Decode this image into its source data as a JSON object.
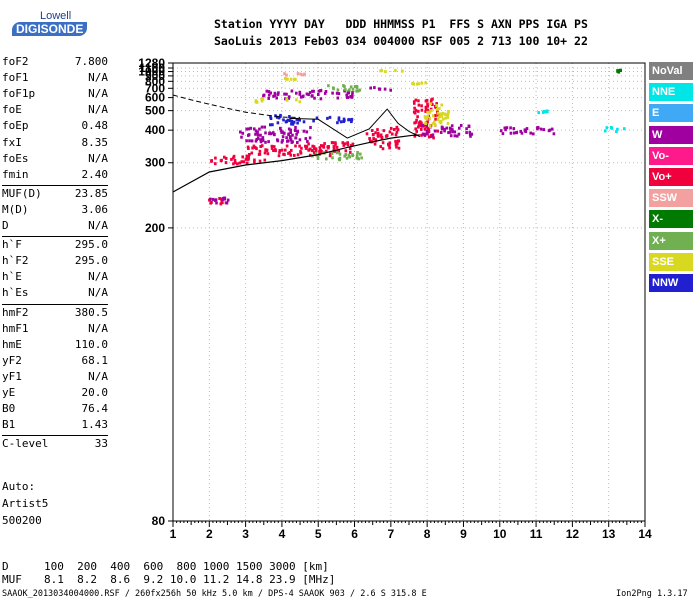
{
  "logo": {
    "top": "Lowell",
    "main": "DIGISONDE"
  },
  "header": {
    "row1": "Station YYYY DAY   DDD HHMMSS P1  FFS S AXN PPS IGA PS",
    "row2": "SaoLuis 2013 Feb03 034 004000 RSF 005 2 713 100 10+ 22"
  },
  "params_group1": [
    {
      "label": "foF2",
      "value": "7.800"
    },
    {
      "label": "foF1",
      "value": "N/A"
    },
    {
      "label": "foF1p",
      "value": "N/A"
    },
    {
      "label": "foE",
      "value": "N/A"
    },
    {
      "label": "foEp",
      "value": "0.48"
    },
    {
      "label": "fxI",
      "value": "8.35"
    },
    {
      "label": "foEs",
      "value": "N/A"
    },
    {
      "label": "fmin",
      "value": "2.40"
    }
  ],
  "params_group2": [
    {
      "label": "MUF(D)",
      "value": "23.85"
    },
    {
      "label": "M(D)",
      "value": "3.06"
    },
    {
      "label": "D",
      "value": "N/A"
    }
  ],
  "params_group3": [
    {
      "label": "h`F",
      "value": "295.0"
    },
    {
      "label": "h`F2",
      "value": "295.0"
    },
    {
      "label": "h`E",
      "value": "N/A"
    },
    {
      "label": "h`Es",
      "value": "N/A"
    }
  ],
  "params_group4": [
    {
      "label": "hmF2",
      "value": "380.5"
    },
    {
      "label": "hmF1",
      "value": "N/A"
    },
    {
      "label": "hmE",
      "value": "110.0"
    },
    {
      "label": "yF2",
      "value": "68.1"
    },
    {
      "label": "yF1",
      "value": "N/A"
    },
    {
      "label": "yE",
      "value": "20.0"
    },
    {
      "label": "B0",
      "value": "76.4"
    },
    {
      "label": "B1",
      "value": "1.43"
    }
  ],
  "params_group5": [
    {
      "label": "C-level",
      "value": "33"
    }
  ],
  "autoscale": {
    "line1": "Auto:",
    "line2": "Artist5",
    "line3": "500200"
  },
  "legend": [
    {
      "label": "NoVal",
      "color": "#808080"
    },
    {
      "label": "NNE",
      "color": "#00e5e5"
    },
    {
      "label": "E",
      "color": "#3fa9f5"
    },
    {
      "label": "W",
      "color": "#a000a0"
    },
    {
      "label": "Vo-",
      "color": "#ff1a8c"
    },
    {
      "label": "Vo+",
      "color": "#f0003c"
    },
    {
      "label": "SSW",
      "color": "#f2a0a0"
    },
    {
      "label": "X-",
      "color": "#007a00"
    },
    {
      "label": "X+",
      "color": "#70b050"
    },
    {
      "label": "SSE",
      "color": "#d8d820"
    },
    {
      "label": "NNW",
      "color": "#2020d0"
    }
  ],
  "muf_table": {
    "d_label": "D",
    "d_values": "100  200  400  600  800 1000 1500 3000 [km]",
    "muf_label": "MUF",
    "muf_values": "8.1  8.2  8.6  9.2 10.0 11.2 14.8 23.9 [MHz]"
  },
  "footer": {
    "left": "SAAOK_2013034004000.RSF / 260fx256h 50 kHz 5.0 km / DPS-4 SAAOK 903 / 2.6 S 315.8 E",
    "right": "Ion2Png 1.3.17"
  },
  "chart_data": {
    "type": "scatter",
    "title": "",
    "xlabel": "",
    "ylabel": "",
    "x_scale": "linear",
    "y_scale": "reciprocal",
    "xlim": [
      1,
      14
    ],
    "ylim": [
      80,
      1280
    ],
    "x_ticks": [
      1,
      2,
      3,
      4,
      5,
      6,
      7,
      8,
      9,
      10,
      11,
      12,
      13,
      14
    ],
    "y_ticks": [
      80,
      200,
      300,
      400,
      500,
      600,
      700,
      800,
      900,
      1000,
      1100,
      1280
    ],
    "grid": "dotted",
    "legend_position": "right",
    "echo_clusters": [
      {
        "type": "Vo+",
        "color": "#f0003c",
        "f": [
          1.9,
          2.5
        ],
        "h": [
          230,
          240
        ]
      },
      {
        "type": "W",
        "color": "#a000a0",
        "f": [
          1.9,
          2.5
        ],
        "h": [
          230,
          240
        ]
      },
      {
        "type": "Vo+",
        "color": "#f0003c",
        "f": [
          2.0,
          3.5
        ],
        "h": [
          300,
          320
        ]
      },
      {
        "type": "W",
        "color": "#a000a0",
        "f": [
          2.8,
          4.8
        ],
        "h": [
          360,
          420
        ]
      },
      {
        "type": "NNW",
        "color": "#2020d0",
        "f": [
          3.6,
          4.6
        ],
        "h": [
          430,
          480
        ]
      },
      {
        "type": "NNW",
        "color": "#2020d0",
        "f": [
          4.8,
          5.9
        ],
        "h": [
          440,
          470
        ]
      },
      {
        "type": "Vo+",
        "color": "#f0003c",
        "f": [
          3.0,
          5.5
        ],
        "h": [
          320,
          350
        ]
      },
      {
        "type": "Vo+",
        "color": "#f0003c",
        "f": [
          4.6,
          6.0
        ],
        "h": [
          330,
          360
        ]
      },
      {
        "type": "Vo+",
        "color": "#f0003c",
        "f": [
          6.3,
          7.2
        ],
        "h": [
          340,
          420
        ]
      },
      {
        "type": "X+",
        "color": "#70b050",
        "f": [
          4.8,
          6.2
        ],
        "h": [
          310,
          330
        ]
      },
      {
        "type": "Vo+",
        "color": "#f0003c",
        "f": [
          7.6,
          8.3
        ],
        "h": [
          370,
          600
        ]
      },
      {
        "type": "W",
        "color": "#a000a0",
        "f": [
          7.8,
          9.2
        ],
        "h": [
          380,
          430
        ]
      },
      {
        "type": "SSE",
        "color": "#d8d820",
        "f": [
          7.9,
          8.6
        ],
        "h": [
          420,
          560
        ]
      },
      {
        "type": "W",
        "color": "#a000a0",
        "f": [
          10.0,
          11.5
        ],
        "h": [
          390,
          420
        ]
      },
      {
        "type": "W",
        "color": "#a000a0",
        "f": [
          3.4,
          6.0
        ],
        "h": [
          600,
          690
        ]
      },
      {
        "type": "X+",
        "color": "#70b050",
        "f": [
          5.2,
          6.2
        ],
        "h": [
          680,
          760
        ]
      },
      {
        "type": "SSE",
        "color": "#d8d820",
        "f": [
          3.2,
          4.6
        ],
        "h": [
          570,
          600
        ]
      },
      {
        "type": "W",
        "color": "#a000a0",
        "f": [
          6.4,
          7.0
        ],
        "h": [
          690,
          730
        ]
      },
      {
        "type": "SSE",
        "color": "#d8d820",
        "f": [
          7.5,
          8.0
        ],
        "h": [
          760,
          800
        ]
      },
      {
        "type": "SSE",
        "color": "#d8d820",
        "f": [
          4.0,
          4.4
        ],
        "h": [
          860,
          880
        ]
      },
      {
        "type": "SSW",
        "color": "#f2a0a0",
        "f": [
          3.9,
          4.6
        ],
        "h": [
          950,
          990
        ]
      },
      {
        "type": "SSE",
        "color": "#d8d820",
        "f": [
          6.6,
          7.3
        ],
        "h": [
          1040,
          1090
        ]
      },
      {
        "type": "NNE",
        "color": "#00e5e5",
        "f": [
          11.0,
          11.4
        ],
        "h": [
          490,
          510
        ]
      },
      {
        "type": "NNE",
        "color": "#00e5e5",
        "f": [
          12.8,
          13.4
        ],
        "h": [
          400,
          420
        ]
      },
      {
        "type": "X-",
        "color": "#007a00",
        "f": [
          13.2,
          13.3
        ],
        "h": [
          1020,
          1080
        ]
      }
    ],
    "ordinary_trace": {
      "x": [
        4.2,
        5.0,
        5.8,
        6.4,
        6.9,
        7.2,
        7.5,
        7.8
      ],
      "y": [
        455,
        450,
        370,
        405,
        510,
        430,
        395,
        375
      ]
    },
    "electron_density_profile": {
      "x": [
        1.0,
        2.0,
        3.0,
        4.0,
        5.0,
        5.8,
        6.4,
        7.0,
        7.6,
        7.8
      ],
      "y": [
        245,
        280,
        295,
        305,
        320,
        340,
        355,
        370,
        380,
        381
      ]
    },
    "topside_extrapolation": {
      "x": [
        1.0,
        1.5,
        2.0,
        2.5,
        3.0,
        3.5,
        4.0,
        4.5
      ],
      "y": [
        625,
        580,
        545,
        515,
        490,
        475,
        462,
        460
      ]
    }
  }
}
